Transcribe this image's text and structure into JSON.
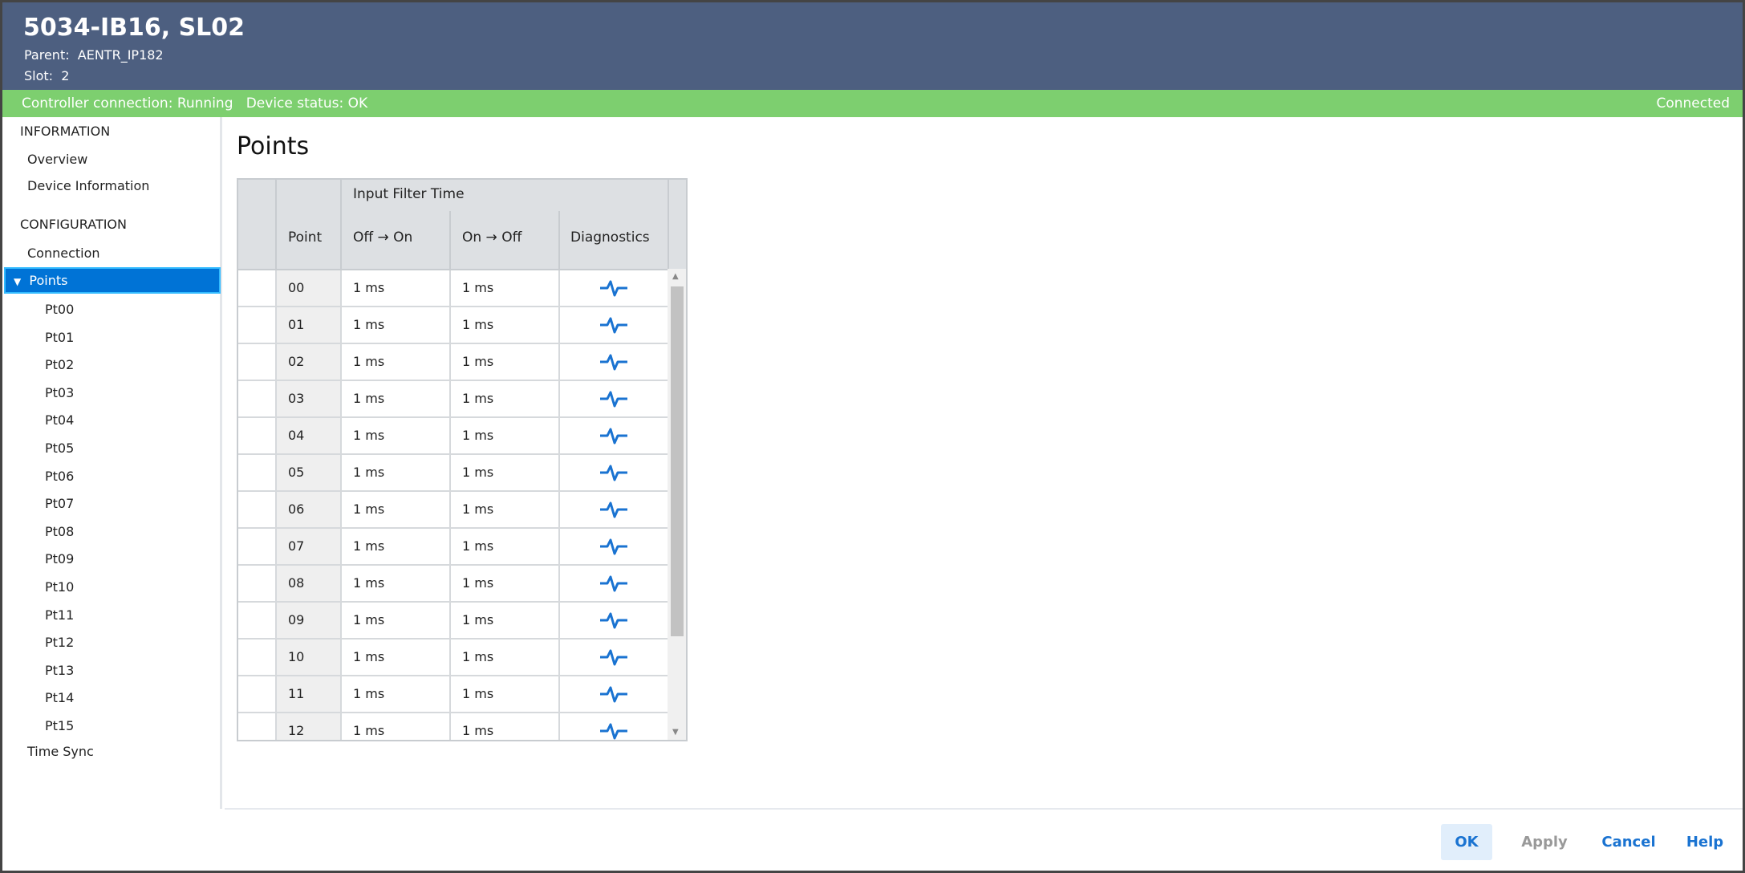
{
  "header": {
    "title": "5034-IB16, SL02",
    "parent_label": "Parent:",
    "parent": "AENTR_IP182",
    "slot_label": "Slot:",
    "slot": "2"
  },
  "status": {
    "controller": "Controller connection: Running",
    "device": "Device status: OK",
    "connection": "Connected",
    "color": "#7dcf6f"
  },
  "sidebar": {
    "information": "INFORMATION",
    "overview": "Overview",
    "device_information": "Device Information",
    "configuration": "CONFIGURATION",
    "connection": "Connection",
    "points": "Points",
    "points_children": [
      "Pt00",
      "Pt01",
      "Pt02",
      "Pt03",
      "Pt04",
      "Pt05",
      "Pt06",
      "Pt07",
      "Pt08",
      "Pt09",
      "Pt10",
      "Pt11",
      "Pt12",
      "Pt13",
      "Pt14",
      "Pt15"
    ],
    "time_sync": "Time Sync"
  },
  "main": {
    "title": "Points",
    "table": {
      "group_header": "Input Filter Time",
      "columns": {
        "point": "Point",
        "off_on": "Off → On",
        "on_off": "On → Off",
        "diagnostics": "Diagnostics"
      },
      "rows": [
        {
          "point": "00",
          "off_on": "1 ms",
          "on_off": "1 ms"
        },
        {
          "point": "01",
          "off_on": "1 ms",
          "on_off": "1 ms"
        },
        {
          "point": "02",
          "off_on": "1 ms",
          "on_off": "1 ms"
        },
        {
          "point": "03",
          "off_on": "1 ms",
          "on_off": "1 ms"
        },
        {
          "point": "04",
          "off_on": "1 ms",
          "on_off": "1 ms"
        },
        {
          "point": "05",
          "off_on": "1 ms",
          "on_off": "1 ms"
        },
        {
          "point": "06",
          "off_on": "1 ms",
          "on_off": "1 ms"
        },
        {
          "point": "07",
          "off_on": "1 ms",
          "on_off": "1 ms"
        },
        {
          "point": "08",
          "off_on": "1 ms",
          "on_off": "1 ms"
        },
        {
          "point": "09",
          "off_on": "1 ms",
          "on_off": "1 ms"
        },
        {
          "point": "10",
          "off_on": "1 ms",
          "on_off": "1 ms"
        },
        {
          "point": "11",
          "off_on": "1 ms",
          "on_off": "1 ms"
        },
        {
          "point": "12",
          "off_on": "1 ms",
          "on_off": "1 ms"
        }
      ],
      "diagnostics_icon": "pulse-icon"
    }
  },
  "footer": {
    "ok": "OK",
    "apply": "Apply",
    "cancel": "Cancel",
    "help": "Help"
  }
}
